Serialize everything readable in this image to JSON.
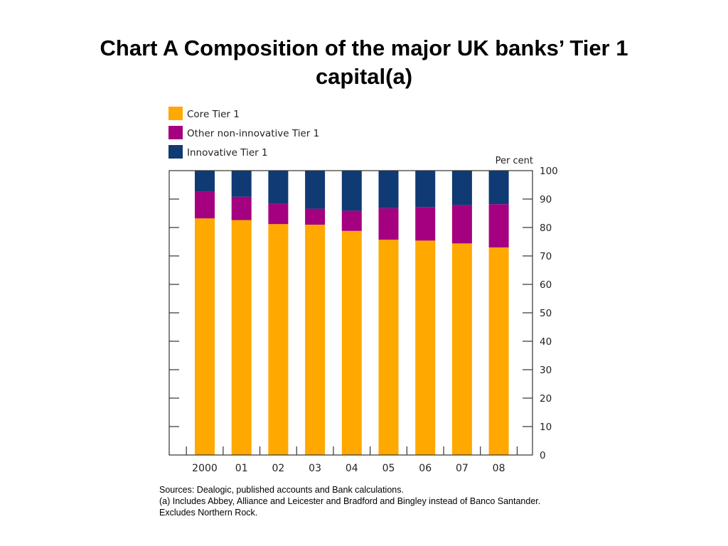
{
  "title_line1": "Chart A  Composition of the major UK banks’ Tier 1",
  "title_line2": "capital(a)",
  "chart_data": {
    "type": "bar",
    "stacked": true,
    "categories": [
      "2000",
      "01",
      "02",
      "03",
      "04",
      "05",
      "06",
      "07",
      "08"
    ],
    "series": [
      {
        "name": "Core Tier 1",
        "color": "#FFA800",
        "values": [
          83.2,
          82.6,
          81.2,
          81.0,
          78.8,
          75.7,
          75.4,
          74.4,
          73.0
        ]
      },
      {
        "name": "Other non-innovative Tier 1",
        "color": "#A4007F",
        "values": [
          9.4,
          8.2,
          7.1,
          5.6,
          7.1,
          11.1,
          11.8,
          13.5,
          15.2
        ]
      },
      {
        "name": "Innovative Tier 1",
        "color": "#0F3A73",
        "values": [
          7.4,
          9.2,
          11.7,
          13.4,
          14.1,
          13.2,
          12.8,
          12.1,
          11.8
        ]
      }
    ],
    "ylabel": "Per cent",
    "ylim": [
      0,
      100
    ],
    "yticks": [
      "0",
      "10",
      "20",
      "30",
      "40",
      "50",
      "60",
      "70",
      "80",
      "90",
      "100"
    ],
    "legend_position": "top-left",
    "grid": false
  },
  "notes": {
    "sources": "Sources:  Dealogic, published accounts and Bank calculations.",
    "note_a": "(a) Includes Abbey, Alliance and Leicester and Bradford and Bingley instead of Banco Santander.",
    "excludes": "Excludes Northern Rock."
  }
}
